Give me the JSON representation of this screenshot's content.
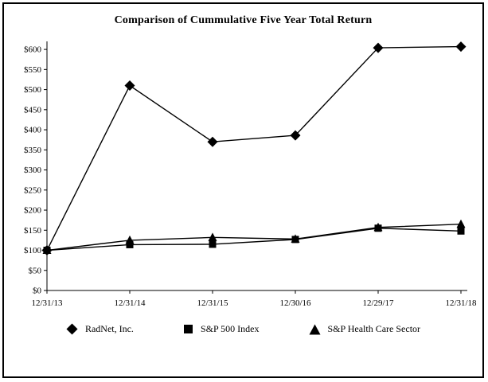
{
  "chart_data": {
    "type": "line",
    "title": "Comparison of Cummulative Five Year Total Return",
    "x": [
      "12/31/13",
      "12/31/14",
      "12/31/15",
      "12/30/16",
      "12/29/17",
      "12/31/18"
    ],
    "series": [
      {
        "name": "RadNet, Inc.",
        "marker": "diamond",
        "values": [
          100,
          510,
          370,
          386,
          604,
          607
        ]
      },
      {
        "name": "S&P 500 Index",
        "marker": "square",
        "values": [
          100,
          114,
          115,
          127,
          155,
          148
        ]
      },
      {
        "name": "S&P Health Care Sector",
        "marker": "triangle",
        "values": [
          100,
          125,
          132,
          128,
          157,
          165
        ]
      }
    ],
    "ylim": [
      0,
      620
    ],
    "yticks": [
      0,
      50,
      100,
      150,
      200,
      250,
      300,
      350,
      400,
      450,
      500,
      550,
      600
    ],
    "ytick_labels": [
      "$0",
      "$50",
      "$100",
      "$150",
      "$200",
      "$250",
      "$300",
      "$350",
      "$400",
      "$450",
      "$500",
      "$550",
      "$600"
    ],
    "grid": false,
    "legend_position": "bottom",
    "line_color": "#000000",
    "background": "#ffffff"
  }
}
